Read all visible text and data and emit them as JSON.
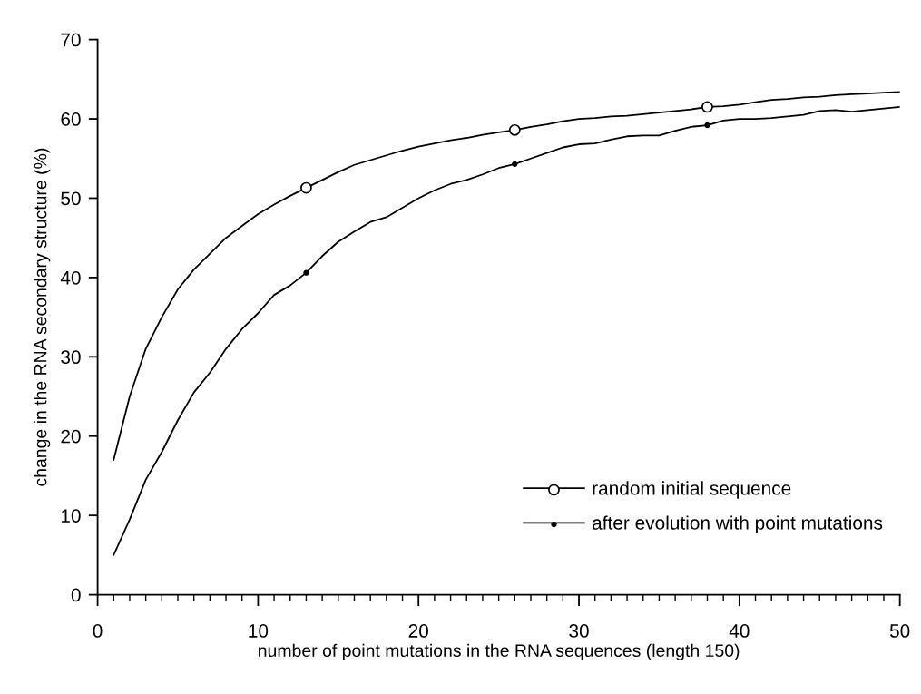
{
  "chart_data": {
    "type": "line",
    "xlabel": "number of point mutations in the RNA sequences (length 150)",
    "ylabel": "change in the RNA secondary structure (%)",
    "x": [
      1,
      2,
      3,
      4,
      5,
      6,
      7,
      8,
      9,
      10,
      11,
      12,
      13,
      14,
      15,
      16,
      17,
      18,
      19,
      20,
      21,
      22,
      23,
      24,
      25,
      26,
      27,
      28,
      29,
      30,
      31,
      32,
      33,
      34,
      35,
      36,
      37,
      38,
      39,
      40,
      41,
      42,
      43,
      44,
      45,
      46,
      47,
      48,
      49,
      50
    ],
    "series": [
      {
        "name": "random initial sequence",
        "color": "#000000",
        "marker": "none",
        "values": [
          17,
          25,
          31,
          35,
          38.5,
          41,
          43,
          45,
          46.5,
          48,
          49.2,
          50.3,
          51.3,
          52.3,
          53.3,
          54.2,
          54.8,
          55.4,
          56,
          56.5,
          56.9,
          57.3,
          57.6,
          58,
          58.3,
          58.6,
          59,
          59.3,
          59.7,
          60,
          60.1,
          60.3,
          60.4,
          60.6,
          60.8,
          61,
          61.2,
          61.5,
          61.6,
          61.8,
          62.1,
          62.4,
          62.5,
          62.7,
          62.8,
          63,
          63.1,
          63.2,
          63.3,
          63.4
        ]
      },
      {
        "name": "after evolution with point mutations",
        "color": "#000000",
        "marker": "none",
        "values": [
          5,
          9.5,
          14.5,
          18,
          22,
          25.5,
          28,
          31,
          33.5,
          35.5,
          37.8,
          39,
          40.6,
          42.7,
          44.5,
          45.8,
          47,
          47.6,
          48.8,
          50,
          51,
          51.8,
          52.3,
          53,
          53.8,
          54.3,
          55,
          55.7,
          56.4,
          56.8,
          56.9,
          57.4,
          57.8,
          57.9,
          57.9,
          58.5,
          59,
          59.2,
          59.8,
          60,
          60,
          60.1,
          60.3,
          60.5,
          61,
          61.1,
          60.9,
          61.1,
          61.3,
          61.5
        ]
      },
      {
        "type": "scatter",
        "color": "#000000",
        "marker": "circle",
        "x": [
          13,
          26,
          38
        ],
        "values": [
          51.3,
          58.6,
          61.5
        ]
      },
      {
        "type": "scatter",
        "color": "#000000",
        "marker": "circle",
        "x": [
          13,
          26,
          38
        ],
        "values": [
          40.6,
          54.3,
          59.2
        ]
      }
    ],
    "xlim": [
      0,
      50
    ],
    "xticks": [
      0,
      10,
      20,
      30,
      40,
      50
    ],
    "ylim": [
      0,
      70
    ],
    "yticks": [
      0,
      10,
      20,
      30,
      40,
      50,
      60,
      70
    ],
    "grid": false,
    "legend": "bottom right",
    "line_style": "solid"
  }
}
